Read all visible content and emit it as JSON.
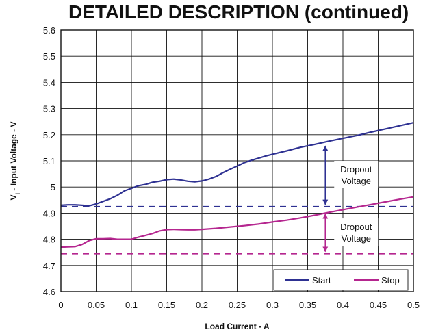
{
  "title": "DETAILED DESCRIPTION (continued)",
  "chart_data": {
    "type": "line",
    "xlabel": "Load Current - A",
    "ylabel_main": "V",
    "ylabel_sub": "I",
    "ylabel_rest": " - Input Voltage - V",
    "xlim": [
      0,
      0.5
    ],
    "ylim": [
      4.6,
      5.6
    ],
    "xticks": [
      0,
      0.05,
      0.1,
      0.15,
      0.2,
      0.25,
      0.3,
      0.35,
      0.4,
      0.45,
      0.5
    ],
    "xtick_labels": [
      "0",
      "0.05",
      "0.1",
      "0.15",
      "0.2",
      "0.25",
      "0.3",
      "0.35",
      "0.4",
      "0.45",
      "0.5"
    ],
    "yticks": [
      4.6,
      4.7,
      4.8,
      4.9,
      5.0,
      5.1,
      5.2,
      5.3,
      5.4,
      5.5,
      5.6
    ],
    "ytick_labels": [
      "4.6",
      "4.7",
      "4.8",
      "4.9",
      "5",
      "5.1",
      "5.2",
      "5.3",
      "5.4",
      "5.5",
      "5.6"
    ],
    "grid": true,
    "legend_position": "bottom-right",
    "series": [
      {
        "name": "Start",
        "color": "#2e3192",
        "x": [
          0,
          0.01,
          0.02,
          0.03,
          0.04,
          0.05,
          0.06,
          0.07,
          0.08,
          0.09,
          0.1,
          0.11,
          0.12,
          0.13,
          0.14,
          0.15,
          0.16,
          0.17,
          0.18,
          0.19,
          0.2,
          0.21,
          0.22,
          0.23,
          0.24,
          0.25,
          0.26,
          0.27,
          0.28,
          0.29,
          0.3,
          0.32,
          0.34,
          0.36,
          0.38,
          0.4,
          0.42,
          0.44,
          0.46,
          0.48,
          0.5
        ],
        "y": [
          4.93,
          4.932,
          4.932,
          4.93,
          4.928,
          4.935,
          4.945,
          4.955,
          4.968,
          4.985,
          4.995,
          5.005,
          5.01,
          5.018,
          5.022,
          5.028,
          5.03,
          5.027,
          5.022,
          5.02,
          5.023,
          5.03,
          5.04,
          5.055,
          5.068,
          5.08,
          5.093,
          5.102,
          5.11,
          5.118,
          5.125,
          5.138,
          5.152,
          5.163,
          5.175,
          5.186,
          5.197,
          5.21,
          5.222,
          5.234,
          5.246
        ]
      },
      {
        "name": "Stop",
        "color": "#b5268f",
        "x": [
          0,
          0.01,
          0.02,
          0.03,
          0.04,
          0.05,
          0.06,
          0.07,
          0.08,
          0.09,
          0.1,
          0.11,
          0.12,
          0.13,
          0.14,
          0.15,
          0.16,
          0.17,
          0.18,
          0.19,
          0.2,
          0.22,
          0.24,
          0.26,
          0.28,
          0.3,
          0.32,
          0.34,
          0.36,
          0.38,
          0.4,
          0.42,
          0.44,
          0.46,
          0.48,
          0.5
        ],
        "y": [
          4.77,
          4.771,
          4.772,
          4.78,
          4.795,
          4.802,
          4.802,
          4.803,
          4.8,
          4.8,
          4.8,
          4.808,
          4.815,
          4.822,
          4.832,
          4.837,
          4.838,
          4.837,
          4.836,
          4.836,
          4.838,
          4.842,
          4.847,
          4.852,
          4.858,
          4.866,
          4.873,
          4.882,
          4.892,
          4.903,
          4.913,
          4.923,
          4.933,
          4.943,
          4.953,
          4.962
        ]
      }
    ],
    "reference_lines": [
      {
        "name": "start-dashed-line",
        "y": 4.925,
        "color": "#2e3192"
      },
      {
        "name": "stop-dashed-line",
        "y": 4.745,
        "color": "#b5268f"
      }
    ],
    "annotations": [
      {
        "name": "dropout-start",
        "line1": "Dropout",
        "line2": "Voltage",
        "arrow_x": 0.375,
        "y_top": 5.165,
        "y_bottom": 4.925,
        "color": "#2e3192"
      },
      {
        "name": "dropout-stop",
        "line1": "Dropout",
        "line2": "Voltage",
        "arrow_x": 0.375,
        "y_top": 4.905,
        "y_bottom": 4.745,
        "color": "#b5268f"
      }
    ]
  }
}
